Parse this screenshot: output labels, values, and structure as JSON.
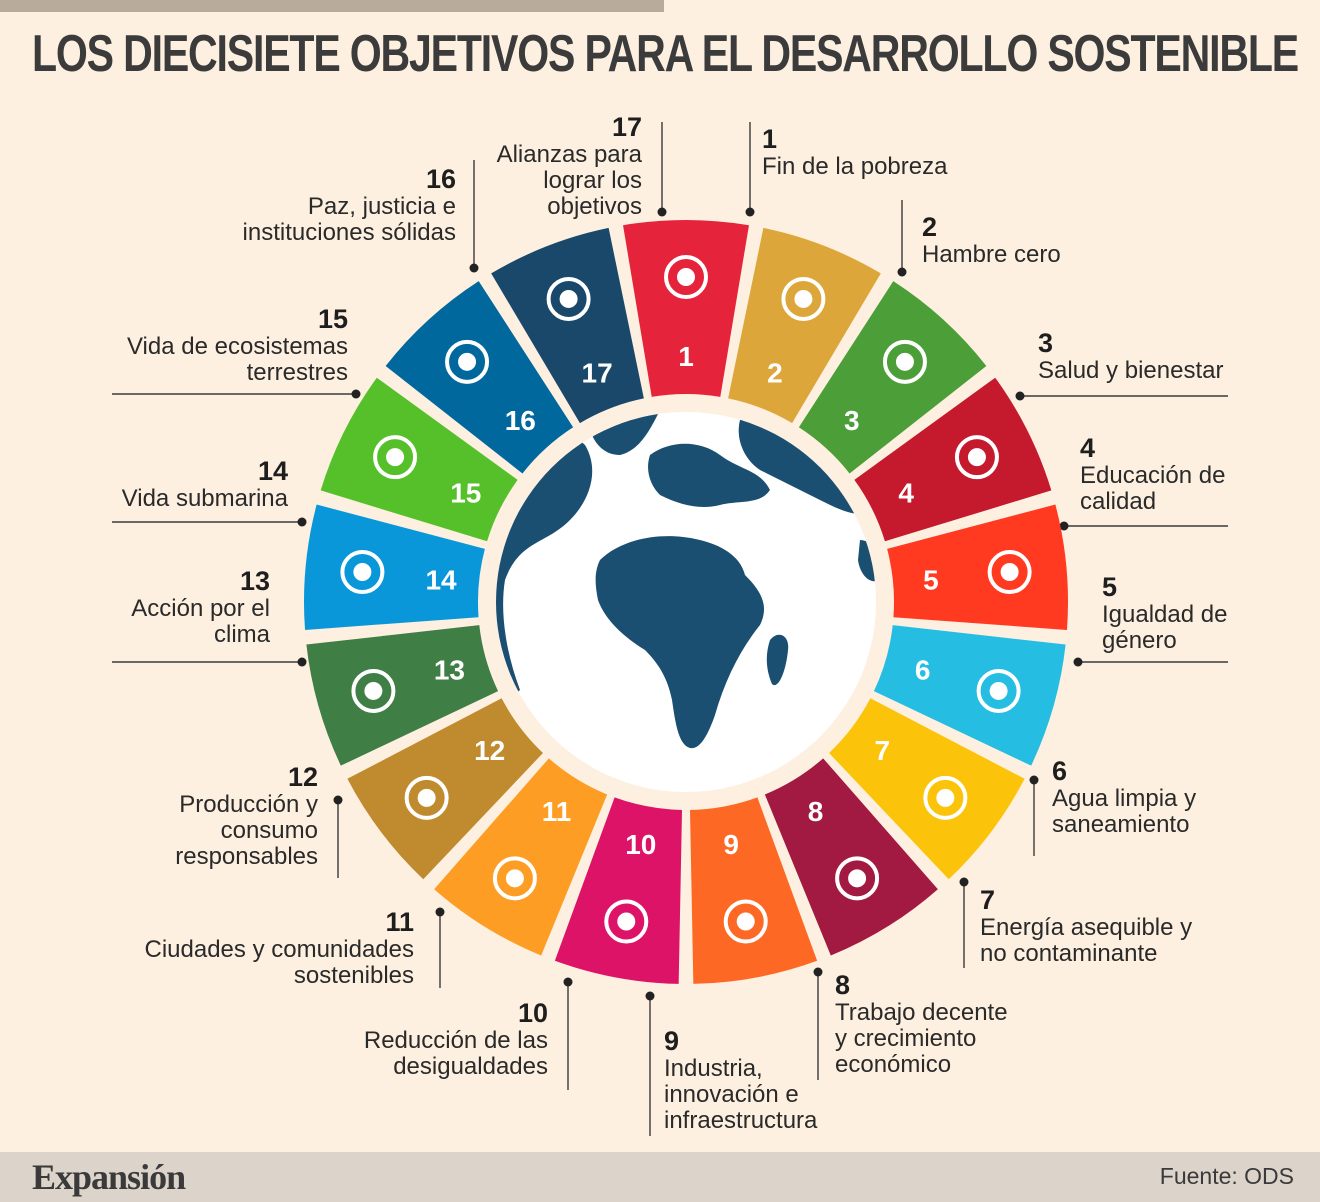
{
  "title": "LOS DIECISIETE OBJETIVOS PARA EL DESARROLLO SOSTENIBLE",
  "goals": [
    {
      "num": "1",
      "lines": [
        "Fin de la pobreza"
      ],
      "color": "#e5243b",
      "icon": "family-people-icon"
    },
    {
      "num": "2",
      "lines": [
        "Hambre cero"
      ],
      "color": "#dda63a",
      "icon": "steaming-bowl-icon"
    },
    {
      "num": "3",
      "lines": [
        "Salud y bienestar"
      ],
      "color": "#4c9f38",
      "icon": "heartbeat-icon"
    },
    {
      "num": "4",
      "lines": [
        "Educación de",
        "calidad"
      ],
      "color": "#c5192d",
      "icon": "open-book-pencil-icon"
    },
    {
      "num": "5",
      "lines": [
        "Igualdad de",
        "género"
      ],
      "color": "#ff3a21",
      "icon": "gender-equality-icon"
    },
    {
      "num": "6",
      "lines": [
        "Agua limpia y",
        "saneamiento"
      ],
      "color": "#26bde2",
      "icon": "water-glass-icon"
    },
    {
      "num": "7",
      "lines": [
        "Energía asequible y",
        "no contaminante"
      ],
      "color": "#fcc30b",
      "icon": "sun-power-icon"
    },
    {
      "num": "8",
      "lines": [
        "Trabajo decente",
        "y crecimiento",
        "económico"
      ],
      "color": "#a21942",
      "icon": "growth-chart-icon"
    },
    {
      "num": "9",
      "lines": [
        "Industria,",
        "innovación e",
        "infraestructura"
      ],
      "color": "#fd6925",
      "icon": "stacked-cubes-icon"
    },
    {
      "num": "10",
      "lines": [
        "Reducción de las",
        "desigualdades"
      ],
      "color": "#dd1367",
      "icon": "equality-circle-icon"
    },
    {
      "num": "11",
      "lines": [
        "Ciudades y comunidades",
        "sostenibles"
      ],
      "color": "#fd9d24",
      "icon": "city-buildings-icon"
    },
    {
      "num": "12",
      "lines": [
        "Producción y",
        "consumo",
        "responsables"
      ],
      "color": "#bf8b2e",
      "icon": "infinity-loop-icon"
    },
    {
      "num": "13",
      "lines": [
        "Acción por el",
        "clima"
      ],
      "color": "#3f7e44",
      "icon": "eye-globe-icon"
    },
    {
      "num": "14",
      "lines": [
        "Vida submarina"
      ],
      "color": "#0a97d9",
      "icon": "fish-waves-icon"
    },
    {
      "num": "15",
      "lines": [
        "Vida de ecosistemas",
        "terrestres"
      ],
      "color": "#56c02b",
      "icon": "tree-birds-icon"
    },
    {
      "num": "16",
      "lines": [
        "Paz, justicia e",
        "instituciones sólidas"
      ],
      "color": "#00689d",
      "icon": "dove-gavel-icon"
    },
    {
      "num": "17",
      "lines": [
        "Alianzas para",
        "lograr los",
        "objetivos"
      ],
      "color": "#19486a",
      "icon": "interlocking-rings-icon"
    }
  ],
  "center": {
    "icon": "earth-globe-icon",
    "ocean_color": "#ffffff",
    "land_color": "#1a4f72"
  },
  "footer": {
    "brand": "Expansión",
    "source": "Fuente: ODS"
  }
}
